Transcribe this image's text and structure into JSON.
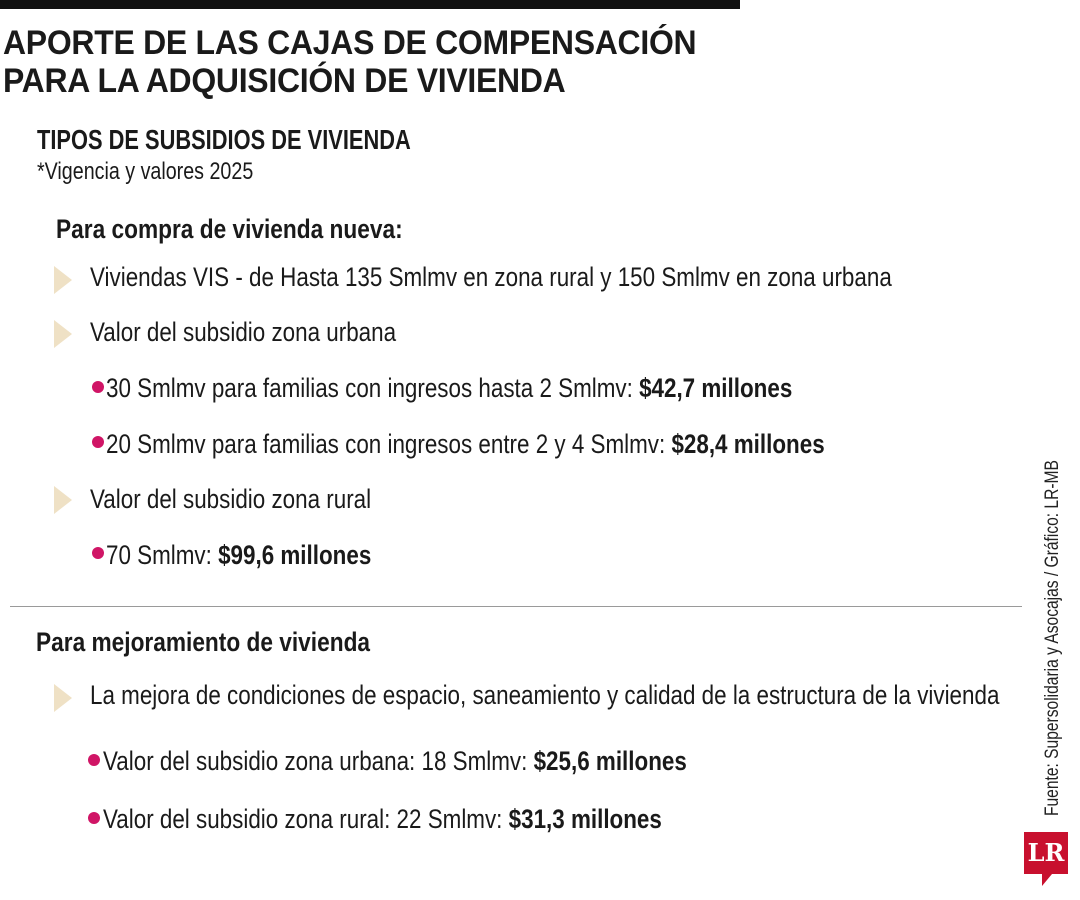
{
  "title_line1": "APORTE DE LAS CAJAS DE COMPENSACIÓN",
  "title_line2": "PARA LA ADQUISICIÓN DE VIVIENDA",
  "section_title": "TIPOS DE SUBSIDIOS DE VIVIENDA",
  "subtitle": "*Vigencia y valores 2025",
  "compra": {
    "heading": "Para compra de vivienda nueva:",
    "item1": "Viviendas VIS - de Hasta 135 Smlmv en zona rural y 150 Smlmv en zona urbana",
    "item2": "Valor del subsidio zona urbana",
    "urbana_1_text": "30 Smlmv para familias con ingresos hasta 2 Smlmv: ",
    "urbana_1_value": "$42,7 millones",
    "urbana_2_text": "20 Smlmv para familias con ingresos entre 2 y 4 Smlmv: ",
    "urbana_2_value": "$28,4 millones",
    "item3": "Valor del subsidio zona rural",
    "rural_1_text": "70 Smlmv: ",
    "rural_1_value": "$99,6 millones"
  },
  "mejoramiento": {
    "heading": "Para mejoramiento de vivienda",
    "item1": "La mejora de condiciones de espacio, saneamiento y calidad de la estructura de la vivienda",
    "sub1_text": "Valor del subsidio zona urbana: 18 Smlmv: ",
    "sub1_value": "$25,6 millones",
    "sub2_text": "Valor del subsidio zona rural: 22 Smlmv: ",
    "sub2_value": "$31,3 millones"
  },
  "credit": "Fuente: Supersolidaria y Asocajas / Gráfico: LR-MB",
  "logo": "LR",
  "colors": {
    "arrow": "#efe1c5",
    "bullet": "#d01566",
    "logo": "#c8102e"
  }
}
